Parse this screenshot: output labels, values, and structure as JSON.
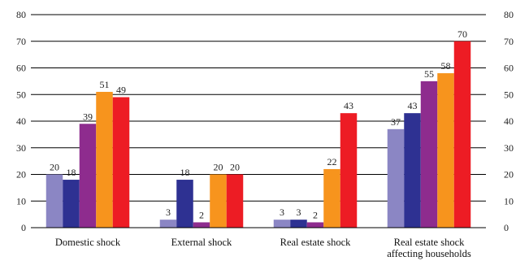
{
  "chart_data": {
    "type": "bar",
    "title": "",
    "xlabel": "",
    "ylabel": "",
    "ylim": [
      0,
      80
    ],
    "yticks": [
      0,
      10,
      20,
      30,
      40,
      50,
      60,
      70,
      80
    ],
    "ytick_labels": [
      "0",
      "10",
      "20",
      "30",
      "40",
      "50",
      "60",
      "70",
      "80"
    ],
    "secondary_y_axis": true,
    "grid": true,
    "legend": "none",
    "categories": [
      [
        "Domestic shock"
      ],
      [
        "External shock"
      ],
      [
        "Real estate shock"
      ],
      [
        "Real estate shock",
        "affecting households"
      ]
    ],
    "series": [
      {
        "color": "#8b86c4",
        "values": [
          20,
          3,
          3,
          37
        ]
      },
      {
        "color": "#2e3192",
        "values": [
          18,
          18,
          3,
          43
        ]
      },
      {
        "color": "#8e2c8e",
        "values": [
          39,
          2,
          2,
          55
        ]
      },
      {
        "color": "#f7941d",
        "values": [
          51,
          20,
          22,
          58
        ]
      },
      {
        "color": "#ed1c24",
        "values": [
          49,
          20,
          43,
          70
        ]
      }
    ]
  }
}
